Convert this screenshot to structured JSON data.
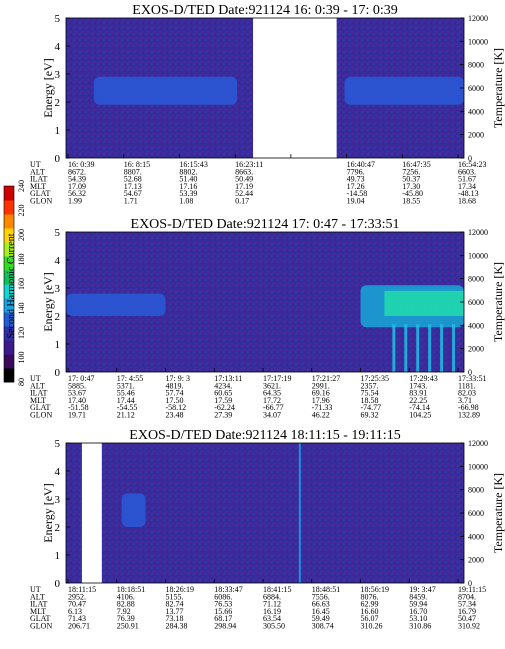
{
  "colorbar": {
    "label": "Second Harmonic Current",
    "ticks": [
      "240",
      "220",
      "200",
      "180",
      "160",
      "140",
      "120",
      "100",
      "80"
    ],
    "colors": [
      "#000000",
      "#3a0a5c",
      "#3d1a8a",
      "#2e2ea8",
      "#1f5fd6",
      "#1aa3e6",
      "#10d6d0",
      "#10c060",
      "#33dd22",
      "#aaf01a",
      "#ffd500",
      "#ff8800",
      "#ff3300",
      "#cc0000"
    ]
  },
  "panel_common": {
    "left_label": "Energy [eV]",
    "right_label": "Temperature [K]",
    "energy_ticks": [
      "0",
      "1",
      "2",
      "3",
      "4",
      "5"
    ],
    "temp_ticks": [
      "0",
      "2000",
      "4000",
      "6000",
      "8000",
      "10000",
      "12000"
    ],
    "row_labels": [
      "UT",
      "ALT",
      "ILAT",
      "MLT",
      "GLAT",
      "GLON"
    ]
  },
  "chart_data": [
    {
      "type": "heatmap",
      "title": "EXOS-D/TED   Date:921124  16: 0:39 - 17: 0:39",
      "ylabel": "Energy [eV]",
      "y2label": "Temperature [K]",
      "ylim": [
        0,
        5
      ],
      "y2lim": [
        0,
        12000
      ],
      "gaps": [
        [
          0.47,
          0.68
        ]
      ],
      "bands": [
        {
          "x": [
            0.07,
            0.43
          ],
          "y": [
            1.9,
            2.9
          ]
        },
        {
          "x": [
            0.7,
            1.0
          ],
          "y": [
            1.9,
            2.9
          ]
        }
      ],
      "columns": [
        {
          "UT": "16: 0:39",
          "ALT": "8672.",
          "ILAT": "54.39",
          "MLT": "17.09",
          "GLAT": "56.32",
          "GLON": "1.99"
        },
        {
          "UT": "16: 8:15",
          "ALT": "8807.",
          "ILAT": "52.68",
          "MLT": "17.13",
          "GLAT": "54.67",
          "GLON": "1.71"
        },
        {
          "UT": "16:15:43",
          "ALT": "8802.",
          "ILAT": "51.40",
          "MLT": "17.16",
          "GLAT": "53.39",
          "GLON": "1.08"
        },
        {
          "UT": "16:23:11",
          "ALT": "8663.",
          "ILAT": "50.49",
          "MLT": "17.19",
          "GLAT": "52.44",
          "GLON": "0.17"
        },
        {
          "UT": "",
          "ALT": "",
          "ILAT": "",
          "MLT": "",
          "GLAT": "",
          "GLON": ""
        },
        {
          "UT": "16:40:47",
          "ALT": "7796.",
          "ILAT": "49.73",
          "MLT": "17.26",
          "GLAT": "-14.58",
          "GLON": "19.04"
        },
        {
          "UT": "16:47:35",
          "ALT": "7256.",
          "ILAT": "50.37",
          "MLT": "17.30",
          "GLAT": "-45.80",
          "GLON": "18.55"
        },
        {
          "UT": "16:54:23",
          "ALT": "6603.",
          "ILAT": "51.67",
          "MLT": "17.34",
          "GLAT": "-48.13",
          "GLON": "18.68"
        }
      ]
    },
    {
      "type": "heatmap",
      "title": "EXOS-D/TED   Date:921124  17: 0:47 - 17:33:51",
      "ylabel": "Energy [eV]",
      "y2label": "Temperature [K]",
      "ylim": [
        0,
        5
      ],
      "y2lim": [
        0,
        12000
      ],
      "gaps": [],
      "bands": [
        {
          "x": [
            0.0,
            0.25
          ],
          "y": [
            2.0,
            2.8
          ]
        },
        {
          "x": [
            0.74,
            1.0
          ],
          "y": [
            1.6,
            3.1
          ]
        }
      ],
      "columns": [
        {
          "UT": "17: 0:47",
          "ALT": "5885.",
          "ILAT": "53.67",
          "MLT": "17.40",
          "GLAT": "-51.58",
          "GLON": "19.71"
        },
        {
          "UT": "17: 4:55",
          "ALT": "5371.",
          "ILAT": "55.46",
          "MLT": "17.44",
          "GLAT": "-54.55",
          "GLON": "21.12"
        },
        {
          "UT": "17: 9: 3",
          "ALT": "4819.",
          "ILAT": "57.74",
          "MLT": "17.50",
          "GLAT": "-58.12",
          "GLON": "23.48"
        },
        {
          "UT": "17:13:11",
          "ALT": "4234.",
          "ILAT": "60.65",
          "MLT": "17.59",
          "GLAT": "-62.24",
          "GLON": "27.39"
        },
        {
          "UT": "17:17:19",
          "ALT": "3621.",
          "ILAT": "64.35",
          "MLT": "17.72",
          "GLAT": "-66.77",
          "GLON": "34.07"
        },
        {
          "UT": "17:21:27",
          "ALT": "2991.",
          "ILAT": "69.16",
          "MLT": "17.96",
          "GLAT": "-71.33",
          "GLON": "46.22"
        },
        {
          "UT": "17:25:35",
          "ALT": "2357.",
          "ILAT": "75.54",
          "MLT": "18.58",
          "GLAT": "-74.77",
          "GLON": "69.32"
        },
        {
          "UT": "17:29:43",
          "ALT": "1743.",
          "ILAT": "83.91",
          "MLT": "22.25",
          "GLAT": "-74.14",
          "GLON": "104.25"
        },
        {
          "UT": "17:33:51",
          "ALT": "1181.",
          "ILAT": "82.03",
          "MLT": "3.71",
          "GLAT": "-66.98",
          "GLON": "132.89"
        }
      ]
    },
    {
      "type": "heatmap",
      "title": "EXOS-D/TED   Date:921124  18:11:15 - 19:11:15",
      "ylabel": "Energy [eV]",
      "y2label": "Temperature [K]",
      "ylim": [
        0,
        5
      ],
      "y2lim": [
        0,
        12000
      ],
      "gaps": [
        [
          0.04,
          0.09
        ]
      ],
      "bands": [
        {
          "x": [
            0.14,
            0.2
          ],
          "y": [
            2.0,
            3.2
          ]
        }
      ],
      "columns": [
        {
          "UT": "18:11:15",
          "ALT": "2952.",
          "ILAT": "70.47",
          "MLT": "6.13",
          "GLAT": "71.43",
          "GLON": "206.71"
        },
        {
          "UT": "18:18:51",
          "ALT": "4106.",
          "ILAT": "82.88",
          "MLT": "7.92",
          "GLAT": "76.39",
          "GLON": "250.91"
        },
        {
          "UT": "18:26:19",
          "ALT": "5155.",
          "ILAT": "82.74",
          "MLT": "13.77",
          "GLAT": "73.18",
          "GLON": "284.38"
        },
        {
          "UT": "18:33:47",
          "ALT": "6086.",
          "ILAT": "76.53",
          "MLT": "15.66",
          "GLAT": "68.17",
          "GLON": "298.94"
        },
        {
          "UT": "18:41:15",
          "ALT": "6884.",
          "ILAT": "71.12",
          "MLT": "16.19",
          "GLAT": "63.54",
          "GLON": "305.50"
        },
        {
          "UT": "18:48:51",
          "ALT": "7556.",
          "ILAT": "66.63",
          "MLT": "16.45",
          "GLAT": "59.49",
          "GLON": "308.74"
        },
        {
          "UT": "18:56:19",
          "ALT": "8076.",
          "ILAT": "62.99",
          "MLT": "16.60",
          "GLAT": "56.07",
          "GLON": "310.26"
        },
        {
          "UT": "19: 3:47",
          "ALT": "8459.",
          "ILAT": "59.94",
          "MLT": "16.70",
          "GLAT": "53.10",
          "GLON": "310.86"
        },
        {
          "UT": "19:11:15",
          "ALT": "8704.",
          "ILAT": "57.34",
          "MLT": "16.79",
          "GLAT": "50.47",
          "GLON": "310.92"
        }
      ]
    }
  ]
}
